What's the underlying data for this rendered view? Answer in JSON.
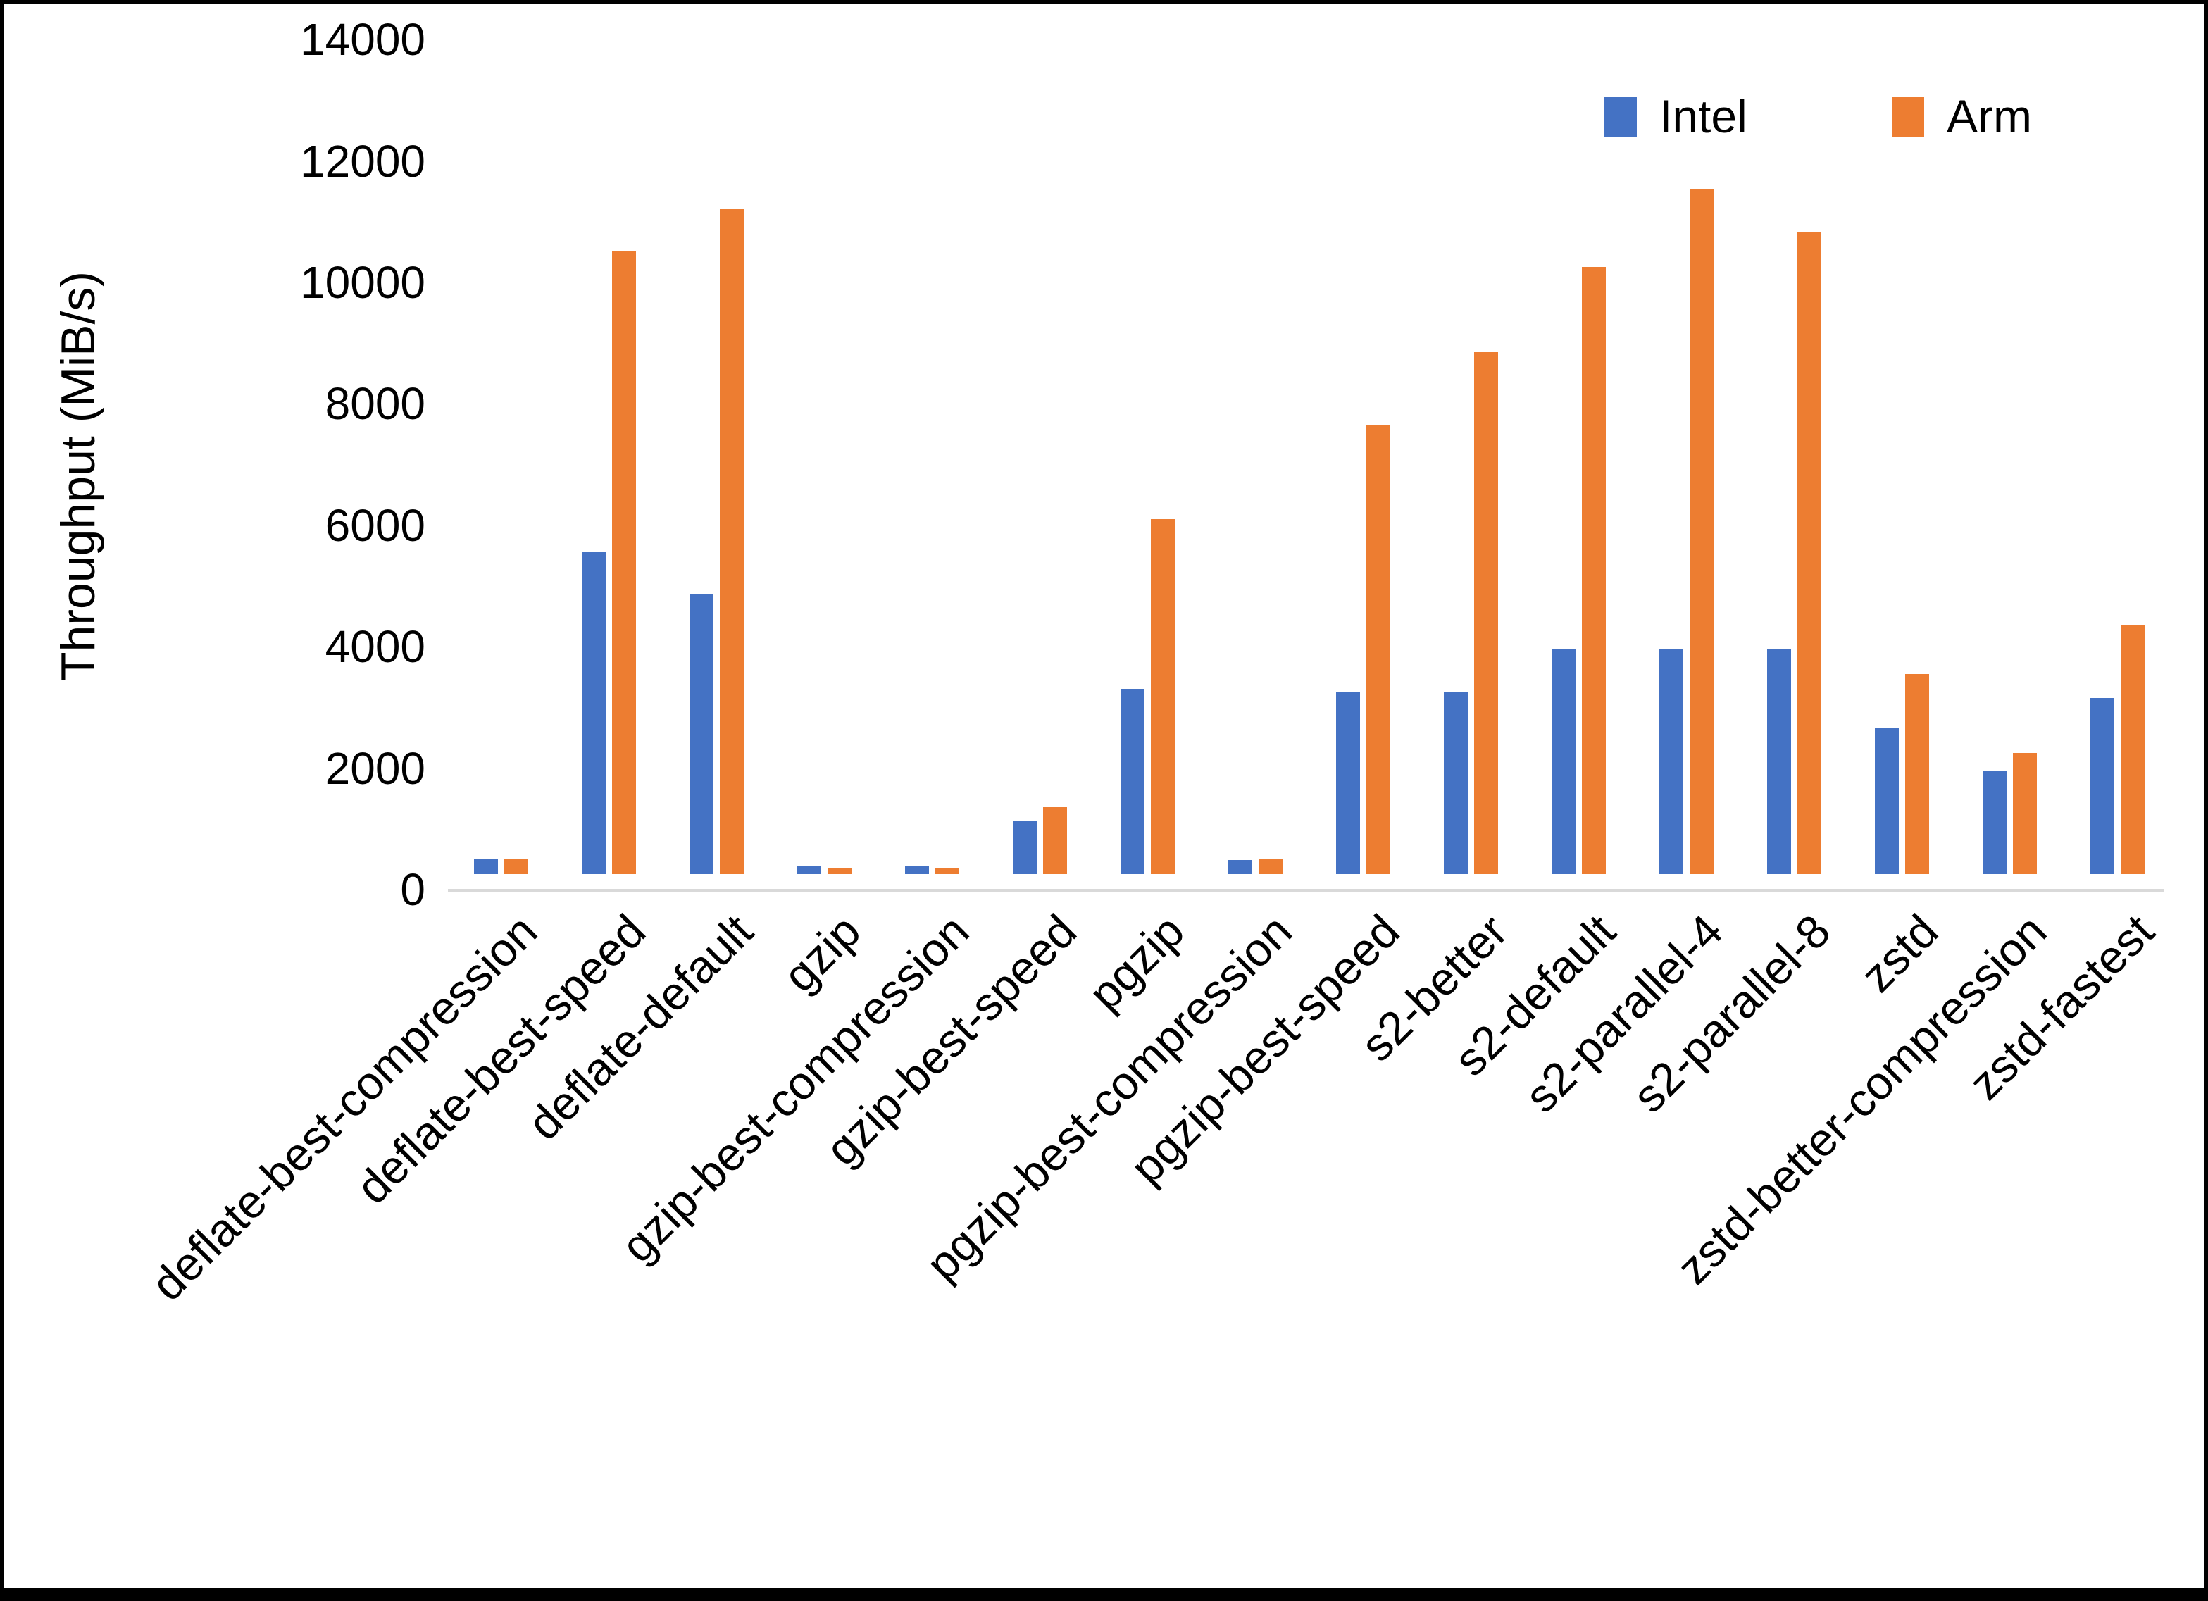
{
  "y_axis_title": "Throughput (MiB/s)",
  "legend": {
    "items": [
      {
        "label": "Intel",
        "color": "#4472C4"
      },
      {
        "label": "Arm",
        "color": "#ED7D31"
      }
    ]
  },
  "axis": {
    "line_color": "#D9D9D9"
  },
  "chart_data": {
    "type": "bar",
    "title": "",
    "xlabel": "",
    "ylabel": "Throughput (MiB/s)",
    "ylim": [
      0,
      14000
    ],
    "yticks": [
      0,
      2000,
      4000,
      6000,
      8000,
      10000,
      12000,
      14000
    ],
    "grid": false,
    "legend_position": "top-right",
    "categories": [
      "deflate-best-compression",
      "deflate-best-speed",
      "deflate-default",
      "gzip",
      "gzip-best-compression",
      "gzip-best-speed",
      "pgzip",
      "pgzip-best-compression",
      "pgzip-best-speed",
      "s2-better",
      "s2-default",
      "s2-parallel-4",
      "s2-parallel-8",
      "zstd",
      "zstd-better-compression",
      "zstd-fastest"
    ],
    "series": [
      {
        "name": "Intel",
        "color": "#4472C4",
        "values": [
          250,
          5300,
          4600,
          130,
          130,
          870,
          3050,
          230,
          3000,
          3000,
          3700,
          3700,
          3700,
          2400,
          1700,
          2900
        ]
      },
      {
        "name": "Arm",
        "color": "#ED7D31",
        "values": [
          240,
          10250,
          10950,
          110,
          110,
          1100,
          5850,
          260,
          7400,
          8600,
          10000,
          11280,
          10580,
          3300,
          2000,
          4100
        ]
      }
    ]
  }
}
